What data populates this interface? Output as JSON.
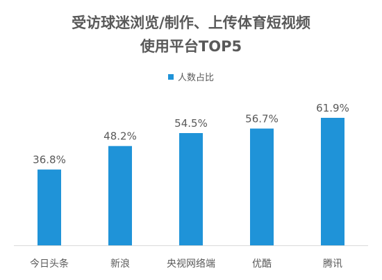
{
  "chart_data": {
    "type": "bar",
    "title_lines": [
      "受访球迷浏览/制作、上传体育短视频",
      "使用平台TOP5"
    ],
    "categories": [
      "今日头条",
      "新浪",
      "央视网络端",
      "优酷",
      "腾讯"
    ],
    "series": [
      {
        "name": "人数占比",
        "values": [
          36.8,
          48.2,
          54.5,
          56.7,
          61.9
        ],
        "labels": [
          "36.8%",
          "48.2%",
          "54.5%",
          "56.7%",
          "61.9%"
        ],
        "color": "#1f93d8"
      }
    ],
    "ylim": [
      0,
      80
    ],
    "grid": false,
    "legend_position": "top-center"
  },
  "colors": {
    "bar": "#1f93d8",
    "text": "#595959",
    "axis": "#d9d9d9"
  }
}
